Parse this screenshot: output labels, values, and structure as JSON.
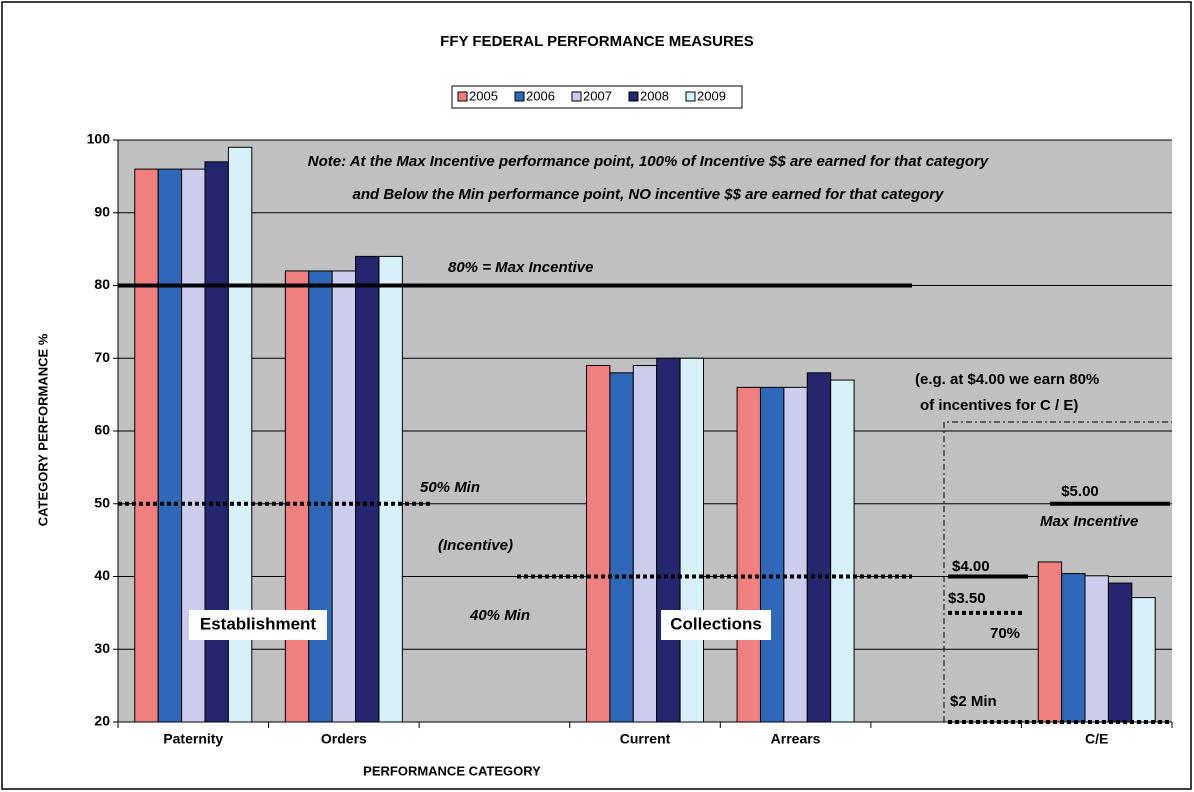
{
  "chart_data": {
    "type": "bar",
    "title": "FFY FEDERAL PERFORMANCE MEASURES",
    "x_label": "PERFORMANCE CATEGORY",
    "y_label": "CATEGORY PERFORMANCE %",
    "categories": [
      "Paternity",
      "Orders",
      null,
      "Current",
      "Arrears",
      null,
      "C/E"
    ],
    "series": [
      {
        "name": "2005",
        "color": "#f08080",
        "values": [
          96,
          82,
          null,
          69,
          66,
          null,
          42
        ]
      },
      {
        "name": "2006",
        "color": "#3068b8",
        "values": [
          96,
          82,
          null,
          68,
          66,
          null,
          40.4
        ]
      },
      {
        "name": "2007",
        "color": "#ccccec",
        "values": [
          96,
          82,
          null,
          69,
          66,
          null,
          40.1
        ]
      },
      {
        "name": "2008",
        "color": "#26266e",
        "values": [
          97,
          84,
          null,
          70,
          68,
          null,
          39.1
        ]
      },
      {
        "name": "2009",
        "color": "#d6f2f8",
        "values": [
          99,
          84,
          null,
          70,
          67,
          null,
          37.1
        ]
      }
    ],
    "ylim": [
      20,
      100
    ],
    "yticks": [
      20,
      30,
      40,
      50,
      60,
      70,
      80,
      90,
      100
    ],
    "grid": true,
    "legend": "top",
    "reference_lines": [
      {
        "value": 80,
        "style": "solid"
      },
      {
        "value": 50,
        "style": "dotted"
      },
      {
        "value": 40,
        "style": "dotted"
      },
      {
        "value": 50,
        "style": "solid"
      },
      {
        "value": 40,
        "style": "solid"
      },
      {
        "value": 35,
        "style": "dotted"
      },
      {
        "value": 20,
        "style": "dotted"
      }
    ],
    "annotations": [
      "Note: At the Max Incentive performance point, 100% of Incentive $$ are earned for that category",
      "and Below the Min performance point, NO incentive $$ are earned for that category",
      "80% = Max Incentive",
      "50% Min",
      "(Incentive)",
      "40% Min",
      "Establishment",
      "Collections",
      "(e.g. at $4.00 we earn 80%",
      "of incentives for C / E)",
      "$5.00",
      "Max Incentive",
      "$4.00",
      "$3.50",
      "70%",
      "$2 Min"
    ]
  }
}
